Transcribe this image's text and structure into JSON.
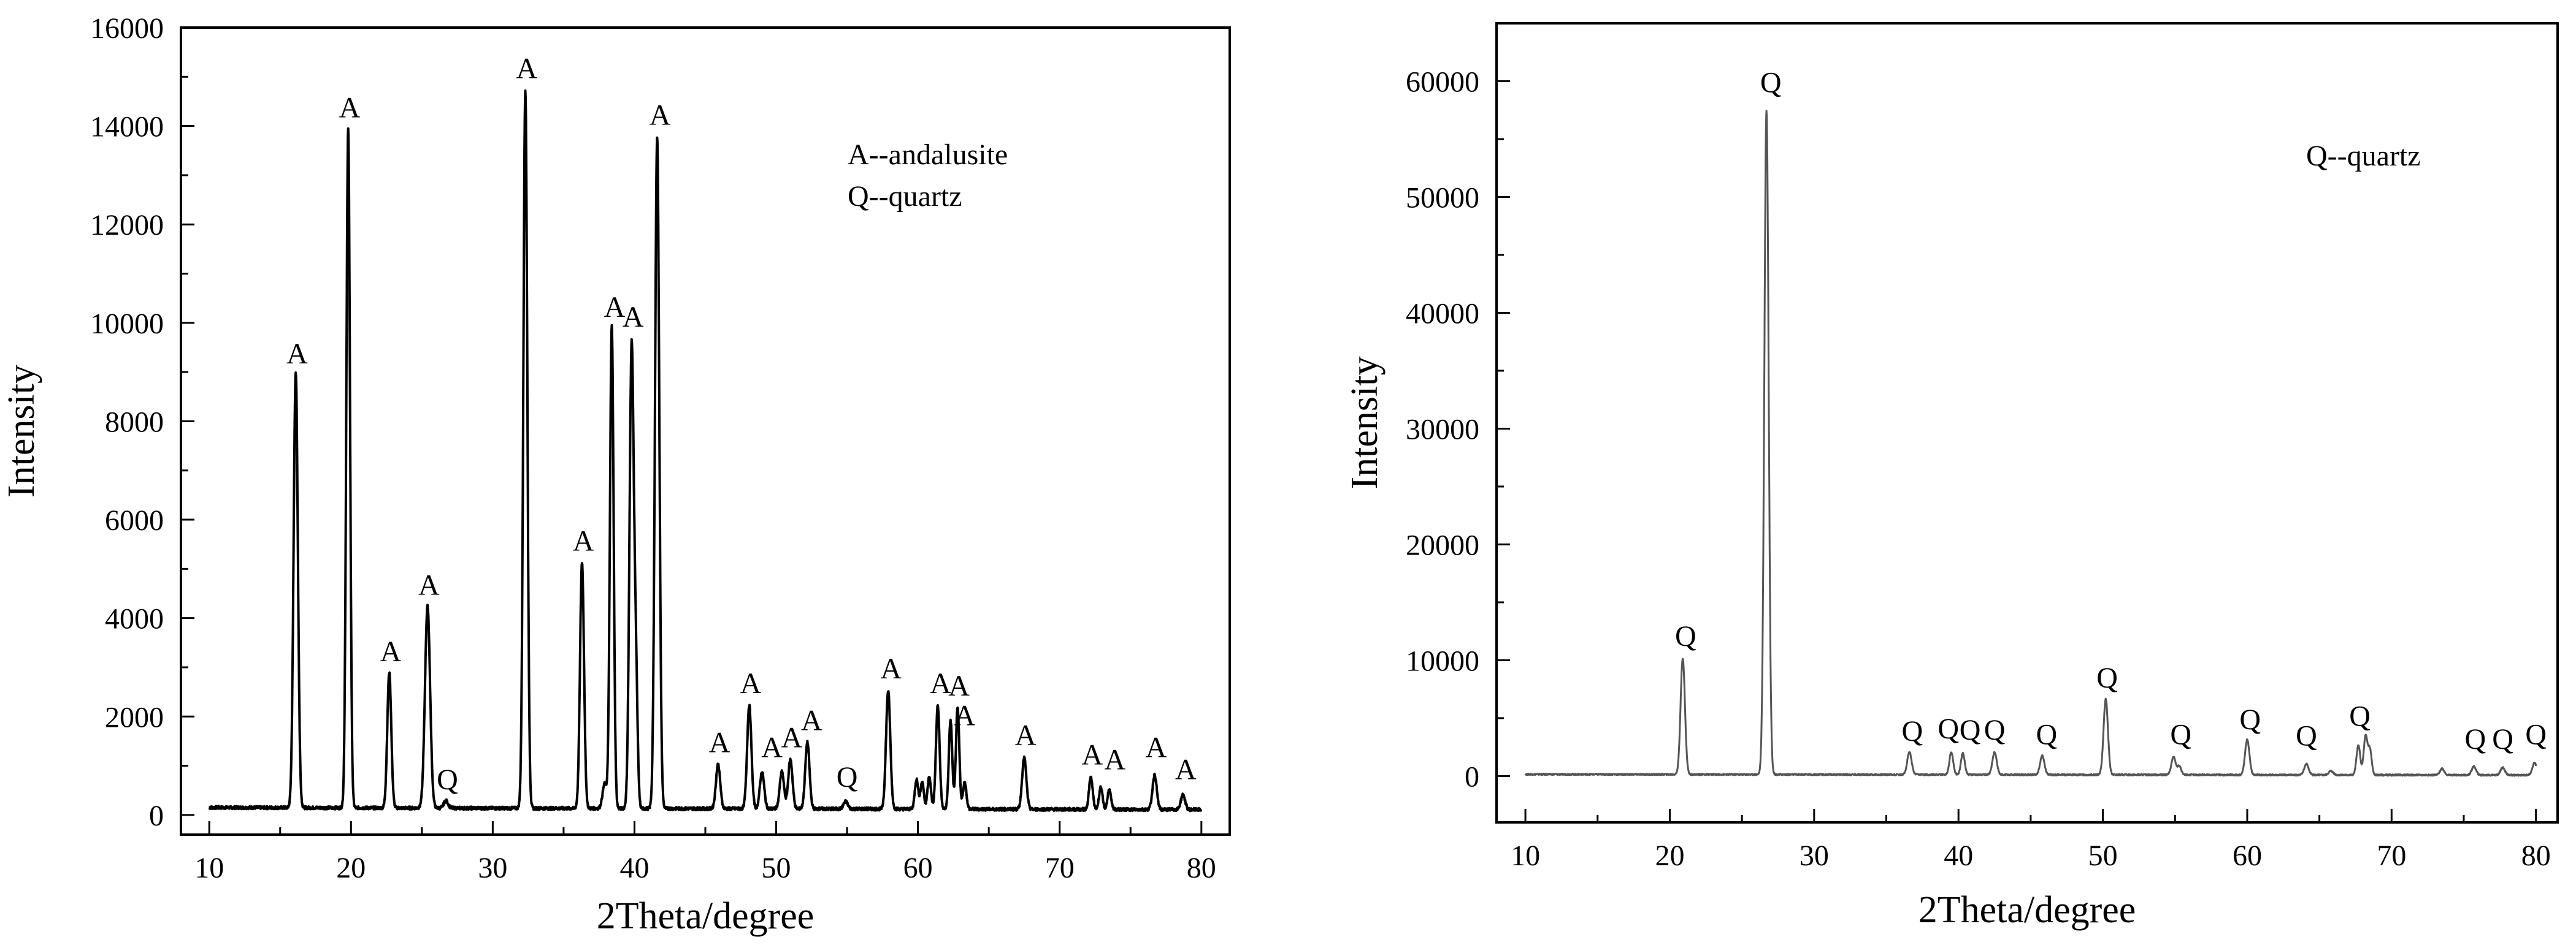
{
  "chart_data": [
    {
      "type": "line",
      "title": "",
      "xlabel": "2Theta/degree",
      "ylabel": "Intensity",
      "xlim": [
        8,
        82
      ],
      "ylim": [
        -400,
        16000
      ],
      "xticks": [
        10,
        20,
        30,
        40,
        50,
        60,
        70,
        80
      ],
      "yticks": [
        0,
        2000,
        4000,
        6000,
        8000,
        10000,
        12000,
        14000,
        16000
      ],
      "grid": false,
      "legend_text": [
        "A--andalusite",
        "Q--quartz"
      ],
      "legend_position": "top-right",
      "baseline": 150,
      "series": [
        {
          "color": "#000000",
          "peaks": [
            {
              "x": 16.1,
              "y": 9000,
              "w": 0.15
            },
            {
              "x": 19.8,
              "y": 13950,
              "w": 0.13
            },
            {
              "x": 22.7,
              "y": 2900,
              "w": 0.14
            },
            {
              "x": 25.4,
              "y": 4250,
              "w": 0.18
            },
            {
              "x": 26.7,
              "y": 300,
              "w": 0.15
            },
            {
              "x": 32.3,
              "y": 14750,
              "w": 0.14
            },
            {
              "x": 36.3,
              "y": 5150,
              "w": 0.14
            },
            {
              "x": 37.9,
              "y": 650,
              "w": 0.15
            },
            {
              "x": 38.4,
              "y": 9950,
              "w": 0.13
            },
            {
              "x": 39.8,
              "y": 9550,
              "w": 0.15
            },
            {
              "x": 40.1,
              "y": 2700,
              "w": 0.12
            },
            {
              "x": 41.6,
              "y": 13800,
              "w": 0.15
            },
            {
              "x": 45.9,
              "y": 1050,
              "w": 0.15
            },
            {
              "x": 48.1,
              "y": 2250,
              "w": 0.15
            },
            {
              "x": 49.0,
              "y": 900,
              "w": 0.15
            },
            {
              "x": 50.4,
              "y": 900,
              "w": 0.15
            },
            {
              "x": 51.0,
              "y": 1150,
              "w": 0.15
            },
            {
              "x": 52.2,
              "y": 1500,
              "w": 0.15
            },
            {
              "x": 54.9,
              "y": 300,
              "w": 0.15
            },
            {
              "x": 57.9,
              "y": 2550,
              "w": 0.15
            },
            {
              "x": 59.9,
              "y": 750,
              "w": 0.12
            },
            {
              "x": 60.3,
              "y": 700,
              "w": 0.12
            },
            {
              "x": 60.8,
              "y": 800,
              "w": 0.12
            },
            {
              "x": 61.4,
              "y": 2250,
              "w": 0.13
            },
            {
              "x": 62.3,
              "y": 1950,
              "w": 0.12
            },
            {
              "x": 62.8,
              "y": 2200,
              "w": 0.12
            },
            {
              "x": 63.3,
              "y": 700,
              "w": 0.12
            },
            {
              "x": 67.5,
              "y": 1200,
              "w": 0.15
            },
            {
              "x": 72.2,
              "y": 800,
              "w": 0.13
            },
            {
              "x": 72.9,
              "y": 600,
              "w": 0.12
            },
            {
              "x": 73.5,
              "y": 550,
              "w": 0.12
            },
            {
              "x": 76.7,
              "y": 850,
              "w": 0.15
            },
            {
              "x": 78.7,
              "y": 450,
              "w": 0.15
            }
          ]
        }
      ],
      "annotations": [
        {
          "text": "A",
          "x": 16.2,
          "y": 9000
        },
        {
          "text": "A",
          "x": 19.9,
          "y": 14000
        },
        {
          "text": "A",
          "x": 22.8,
          "y": 2950
        },
        {
          "text": "A",
          "x": 25.5,
          "y": 4300
        },
        {
          "text": "Q",
          "x": 26.8,
          "y": 350
        },
        {
          "text": "A",
          "x": 32.4,
          "y": 14800
        },
        {
          "text": "A",
          "x": 36.4,
          "y": 5200
        },
        {
          "text": "A",
          "x": 38.6,
          "y": 9950
        },
        {
          "text": "A",
          "x": 39.9,
          "y": 9750
        },
        {
          "text": "A",
          "x": 41.8,
          "y": 13850
        },
        {
          "text": "A",
          "x": 46.0,
          "y": 1100
        },
        {
          "text": "A",
          "x": 48.2,
          "y": 2300
        },
        {
          "text": "A",
          "x": 49.7,
          "y": 1000
        },
        {
          "text": "A",
          "x": 51.1,
          "y": 1200
        },
        {
          "text": "A",
          "x": 52.5,
          "y": 1550
        },
        {
          "text": "Q",
          "x": 55.0,
          "y": 400
        },
        {
          "text": "A",
          "x": 58.1,
          "y": 2600
        },
        {
          "text": "A",
          "x": 61.6,
          "y": 2300
        },
        {
          "text": "A",
          "x": 62.9,
          "y": 2250
        },
        {
          "text": "A",
          "x": 63.3,
          "y": 1650
        },
        {
          "text": "A",
          "x": 67.6,
          "y": 1250
        },
        {
          "text": "A",
          "x": 72.3,
          "y": 850
        },
        {
          "text": "A",
          "x": 73.9,
          "y": 750
        },
        {
          "text": "A",
          "x": 76.8,
          "y": 1000
        },
        {
          "text": "A",
          "x": 78.9,
          "y": 550
        }
      ]
    },
    {
      "type": "line",
      "title": "",
      "xlabel": "2Theta/degree",
      "ylabel": "Intensity",
      "xlim": [
        8,
        81.5
      ],
      "ylim": [
        -4000,
        65000
      ],
      "xticks": [
        10,
        20,
        30,
        40,
        50,
        60,
        70,
        80
      ],
      "yticks": [
        0,
        10000,
        20000,
        30000,
        40000,
        50000,
        60000
      ],
      "grid": false,
      "legend_text": [
        "Q--quartz"
      ],
      "legend_position": "top-right",
      "baseline": 150,
      "series": [
        {
          "color": "#555555",
          "peaks": [
            {
              "x": 20.9,
              "y": 10200,
              "w": 0.15
            },
            {
              "x": 26.7,
              "y": 57500,
              "w": 0.15
            },
            {
              "x": 36.6,
              "y": 2100,
              "w": 0.15
            },
            {
              "x": 39.5,
              "y": 2100,
              "w": 0.13
            },
            {
              "x": 40.3,
              "y": 2000,
              "w": 0.13
            },
            {
              "x": 42.5,
              "y": 2100,
              "w": 0.15
            },
            {
              "x": 45.8,
              "y": 1800,
              "w": 0.15
            },
            {
              "x": 50.2,
              "y": 6700,
              "w": 0.15
            },
            {
              "x": 54.9,
              "y": 1700,
              "w": 0.15
            },
            {
              "x": 55.3,
              "y": 900,
              "w": 0.12
            },
            {
              "x": 60.0,
              "y": 3200,
              "w": 0.15
            },
            {
              "x": 64.1,
              "y": 1100,
              "w": 0.15
            },
            {
              "x": 65.8,
              "y": 500,
              "w": 0.15
            },
            {
              "x": 67.7,
              "y": 2700,
              "w": 0.13
            },
            {
              "x": 68.2,
              "y": 3500,
              "w": 0.13
            },
            {
              "x": 68.5,
              "y": 2300,
              "w": 0.12
            },
            {
              "x": 73.5,
              "y": 700,
              "w": 0.15
            },
            {
              "x": 75.7,
              "y": 900,
              "w": 0.15
            },
            {
              "x": 77.7,
              "y": 800,
              "w": 0.15
            },
            {
              "x": 79.9,
              "y": 1200,
              "w": 0.15
            }
          ]
        }
      ],
      "annotations": [
        {
          "text": "Q",
          "x": 21.1,
          "y": 10500
        },
        {
          "text": "Q",
          "x": 27.0,
          "y": 58300
        },
        {
          "text": "Q",
          "x": 36.8,
          "y": 2300
        },
        {
          "text": "Q",
          "x": 39.3,
          "y": 2500
        },
        {
          "text": "Q",
          "x": 40.8,
          "y": 2400
        },
        {
          "text": "Q",
          "x": 42.5,
          "y": 2400
        },
        {
          "text": "Q",
          "x": 46.1,
          "y": 2000
        },
        {
          "text": "Q",
          "x": 50.3,
          "y": 6900
        },
        {
          "text": "Q",
          "x": 55.4,
          "y": 2000
        },
        {
          "text": "Q",
          "x": 60.2,
          "y": 3300
        },
        {
          "text": "Q",
          "x": 64.1,
          "y": 1900
        },
        {
          "text": "Q",
          "x": 67.8,
          "y": 3600
        },
        {
          "text": "Q",
          "x": 75.8,
          "y": 1600
        },
        {
          "text": "Q",
          "x": 77.7,
          "y": 1600
        },
        {
          "text": "Q",
          "x": 80.0,
          "y": 2000
        }
      ]
    }
  ]
}
